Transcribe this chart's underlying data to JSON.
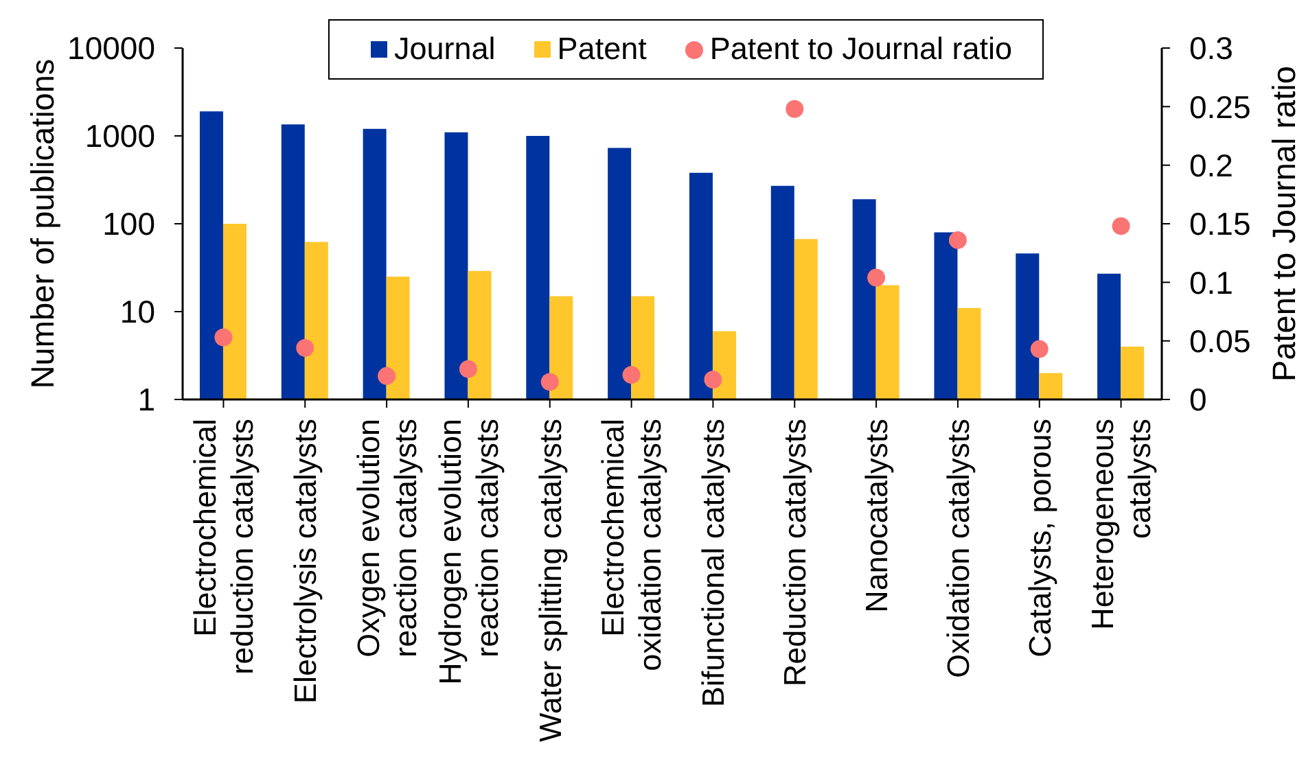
{
  "chart_data": {
    "type": "bar",
    "categories": [
      "Electrochemical reduction catalysts",
      "Electrolysis catalysts",
      "Oxygen evolution reaction catalysts",
      "Hydrogen evolution reaction catalysts",
      "Water splitting catalysts",
      "Electrochemical oxidation catalysts",
      "Bifunctional catalysts",
      "Reduction catalysts",
      "Nanocatalysts",
      "Oxidation catalysts",
      "Catalysts, porous",
      "Heterogeneous catalysts"
    ],
    "series": [
      {
        "name": "Journal",
        "color": "#0033a0",
        "values": [
          1900,
          1350,
          1200,
          1100,
          1000,
          730,
          380,
          270,
          190,
          80,
          46,
          27
        ]
      },
      {
        "name": "Patent",
        "color": "#ffc72c",
        "values": [
          100,
          62,
          25,
          29,
          15,
          15,
          6,
          67,
          20,
          11,
          2,
          4
        ]
      },
      {
        "name": "Patent to Journal ratio",
        "type": "scatter",
        "axis": "y2",
        "color": "#fb7474",
        "values": [
          0.053,
          0.044,
          0.02,
          0.026,
          0.015,
          0.021,
          0.017,
          0.248,
          0.104,
          0.136,
          0.043,
          0.148
        ]
      }
    ],
    "ylabel": "Number of publications",
    "y2label": "Patent to Journal ratio",
    "log": "y",
    "ylim": [
      1,
      10000
    ],
    "yticks": [
      1,
      10,
      100,
      1000,
      10000
    ],
    "y2lim": [
      0,
      0.3
    ],
    "y2ticks": [
      0,
      0.05,
      0.1,
      0.15,
      0.2,
      0.25,
      0.3
    ],
    "legend": "top",
    "marker": "circle"
  }
}
